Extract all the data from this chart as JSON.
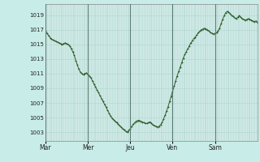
{
  "background_color": "#c8ece8",
  "plot_bg_color": "#d4ede9",
  "grid_color": "#b0d4cf",
  "line_color": "#2d5e2d",
  "marker_color": "#2d5e2d",
  "yticks": [
    1003,
    1005,
    1007,
    1009,
    1011,
    1013,
    1015,
    1017,
    1019
  ],
  "ylim": [
    1001.8,
    1020.5
  ],
  "day_labels": [
    "Mar",
    "Mer",
    "Jeu",
    "Ven",
    "Sam"
  ],
  "pressure_data": [
    1016.8,
    1016.5,
    1016.2,
    1015.9,
    1015.7,
    1015.6,
    1015.5,
    1015.4,
    1015.3,
    1015.2,
    1015.1,
    1015.0,
    1015.1,
    1015.2,
    1015.1,
    1015.0,
    1014.8,
    1014.4,
    1014.0,
    1013.5,
    1012.8,
    1012.2,
    1011.6,
    1011.2,
    1011.0,
    1010.9,
    1011.0,
    1011.1,
    1010.9,
    1010.7,
    1010.4,
    1010.0,
    1009.6,
    1009.2,
    1008.8,
    1008.4,
    1008.0,
    1007.6,
    1007.2,
    1006.8,
    1006.4,
    1006.0,
    1005.6,
    1005.2,
    1004.9,
    1004.7,
    1004.5,
    1004.3,
    1004.1,
    1003.9,
    1003.7,
    1003.5,
    1003.3,
    1003.1,
    1003.0,
    1003.2,
    1003.5,
    1003.8,
    1004.1,
    1004.3,
    1004.5,
    1004.6,
    1004.6,
    1004.5,
    1004.4,
    1004.3,
    1004.2,
    1004.2,
    1004.3,
    1004.4,
    1004.2,
    1004.0,
    1003.9,
    1003.8,
    1003.7,
    1003.8,
    1004.0,
    1004.3,
    1004.8,
    1005.3,
    1005.9,
    1006.5,
    1007.2,
    1007.9,
    1008.6,
    1009.3,
    1010.0,
    1010.7,
    1011.3,
    1011.9,
    1012.5,
    1013.1,
    1013.6,
    1014.0,
    1014.4,
    1014.8,
    1015.2,
    1015.5,
    1015.8,
    1016.0,
    1016.3,
    1016.6,
    1016.8,
    1017.0,
    1017.1,
    1017.2,
    1017.1,
    1017.0,
    1016.8,
    1016.6,
    1016.5,
    1016.4,
    1016.5,
    1016.6,
    1016.8,
    1017.2,
    1017.8,
    1018.4,
    1018.9,
    1019.3,
    1019.5,
    1019.4,
    1019.2,
    1019.0,
    1018.8,
    1018.6,
    1018.5,
    1018.7,
    1018.9,
    1018.7,
    1018.5,
    1018.4,
    1018.3,
    1018.4,
    1018.5,
    1018.4,
    1018.3,
    1018.2,
    1018.1,
    1018.2,
    1018.0
  ]
}
